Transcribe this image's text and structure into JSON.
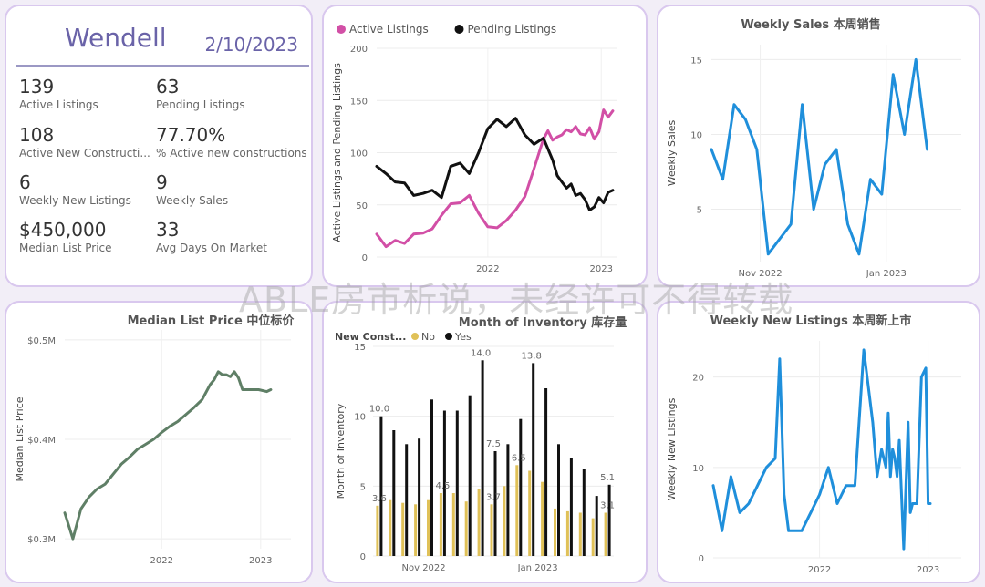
{
  "kpi": {
    "title": "Wendell",
    "date": "2/10/2023",
    "items": [
      {
        "value": "139",
        "label": "Active Listings"
      },
      {
        "value": "63",
        "label": "Pending Listings"
      },
      {
        "value": "108",
        "label": "Active New Constructi..."
      },
      {
        "value": "77.70%",
        "label": "% Active new constructions"
      },
      {
        "value": "6",
        "label": "Weekly New Listings"
      },
      {
        "value": "9",
        "label": "Weekly Sales"
      },
      {
        "value": "$450,000",
        "label": "Median List Price"
      },
      {
        "value": "33",
        "label": "Avg Days On Market"
      }
    ]
  },
  "watermark": "ABLE房市析说，未经许可不得转载",
  "colors": {
    "pink": "#d24fa6",
    "black": "#111111",
    "blue": "#1f8fdb",
    "green": "#5f7f66",
    "gold": "#e0c158"
  },
  "chart_data": [
    {
      "id": "active-pending",
      "type": "line",
      "title": "",
      "ylabel": "Active Listings and Pending Listings",
      "xlabel": "",
      "ylim": [
        0,
        200
      ],
      "yticks": [
        0,
        50,
        100,
        150,
        200
      ],
      "xlim": [
        0,
        52
      ],
      "xticks": [
        {
          "x": 24,
          "label": "2022"
        },
        {
          "x": 48.5,
          "label": "2023"
        }
      ],
      "legend": "top-left",
      "series": [
        {
          "name": "Active Listings",
          "color": "#d24fa6",
          "x": [
            0,
            2,
            4,
            6,
            8,
            10,
            12,
            14,
            16,
            18,
            20,
            22,
            24,
            26,
            28,
            30,
            32,
            34,
            36,
            37,
            38,
            39,
            40,
            41,
            42,
            43,
            44,
            45,
            46,
            47,
            48,
            49,
            50,
            51
          ],
          "y": [
            22,
            10,
            16,
            13,
            22,
            23,
            27,
            40,
            51,
            52,
            59,
            42,
            29,
            28,
            35,
            45,
            58,
            85,
            113,
            121,
            112,
            115,
            117,
            122,
            120,
            125,
            118,
            117,
            124,
            113,
            120,
            141,
            134,
            140
          ]
        },
        {
          "name": "Pending Listings",
          "color": "#111111",
          "x": [
            0,
            2,
            4,
            6,
            8,
            10,
            12,
            14,
            16,
            18,
            20,
            22,
            24,
            26,
            28,
            30,
            32,
            34,
            36,
            38,
            39,
            40,
            41,
            42,
            43,
            44,
            45,
            46,
            47,
            48,
            49,
            50,
            51
          ],
          "y": [
            87,
            80,
            72,
            71,
            59,
            61,
            64,
            57,
            87,
            90,
            80,
            100,
            123,
            132,
            125,
            133,
            117,
            108,
            114,
            93,
            78,
            72,
            66,
            70,
            59,
            61,
            55,
            45,
            48,
            57,
            52,
            62,
            64
          ]
        }
      ]
    },
    {
      "id": "weekly-sales",
      "type": "line",
      "title": "Weekly Sales 本周销售",
      "ylabel": "Weekly Sales",
      "xlabel": "",
      "ylim": [
        1.5,
        16
      ],
      "yticks": [
        5,
        10,
        15
      ],
      "xlim": [
        0,
        22
      ],
      "xticks": [
        {
          "x": 4.3,
          "label": "Nov 2022"
        },
        {
          "x": 15.4,
          "label": "Jan 2023"
        }
      ],
      "legend": "none",
      "series": [
        {
          "name": "Weekly Sales",
          "color": "#1f8fdb",
          "x": [
            0,
            1,
            2,
            3,
            4,
            5,
            6,
            7,
            8,
            9,
            10,
            11,
            12,
            13,
            14,
            15,
            16,
            17,
            18,
            19,
            20,
            21
          ],
          "y": [
            9,
            7,
            12,
            11,
            9,
            2,
            3,
            4,
            12,
            5,
            8,
            9,
            4,
            2,
            7,
            6,
            14,
            10,
            15,
            9,
            null,
            null
          ]
        }
      ]
    },
    {
      "id": "median-list-price",
      "type": "line",
      "title": "Median List Price  中位标价",
      "ylabel": "Median List Price",
      "xlabel": "",
      "ylim": [
        0.29,
        0.51
      ],
      "yticks": [
        {
          "v": 0.3,
          "label": "$0.3M"
        },
        {
          "v": 0.4,
          "label": "$0.4M"
        },
        {
          "v": 0.5,
          "label": "$0.5M"
        }
      ],
      "xlim": [
        0,
        56
      ],
      "xticks": [
        {
          "x": 24,
          "label": "2022"
        },
        {
          "x": 48.5,
          "label": "2023"
        }
      ],
      "legend": "none",
      "series": [
        {
          "name": "Median List Price",
          "color": "#5f7f66",
          "x": [
            0,
            2,
            4,
            6,
            8,
            10,
            12,
            14,
            16,
            18,
            20,
            22,
            24,
            26,
            28,
            30,
            32,
            34,
            36,
            37,
            38,
            39,
            40,
            41,
            42,
            43,
            44,
            46,
            48,
            50,
            51
          ],
          "y": [
            0.326,
            0.3,
            0.33,
            0.342,
            0.35,
            0.355,
            0.365,
            0.375,
            0.382,
            0.39,
            0.395,
            0.4,
            0.407,
            0.413,
            0.418,
            0.425,
            0.432,
            0.44,
            0.455,
            0.46,
            0.468,
            0.465,
            0.465,
            0.463,
            0.468,
            0.462,
            0.45,
            0.45,
            0.45,
            0.448,
            0.45
          ]
        }
      ]
    },
    {
      "id": "month-of-inventory",
      "type": "bar",
      "title": "Month of Inventory 库存量",
      "legend_title": "New Const...",
      "legend": "top-left",
      "ylabel": "Month of Inventory",
      "xlabel": "",
      "ylim": [
        0,
        15
      ],
      "yticks": [
        0,
        5,
        10,
        15
      ],
      "xticks": [
        {
          "i": 3.5,
          "label": "Nov 2022"
        },
        {
          "i": 12.5,
          "label": "Jan 2023"
        }
      ],
      "series": [
        {
          "name": "No",
          "color": "#e0c158",
          "values": [
            3.6,
            4.0,
            3.8,
            3.7,
            4.0,
            4.5,
            4.5,
            3.9,
            4.8,
            3.7,
            5.0,
            6.5,
            6.1,
            5.3,
            3.4,
            3.2,
            3.1,
            2.7,
            3.1
          ]
        },
        {
          "name": "Yes",
          "color": "#111111",
          "values": [
            10.0,
            9.0,
            8.0,
            8.4,
            11.2,
            10.4,
            10.4,
            11.5,
            14.0,
            7.5,
            8.0,
            9.8,
            13.8,
            12.0,
            8.0,
            7.0,
            6.2,
            4.3,
            5.1
          ]
        }
      ],
      "data_labels": [
        {
          "i": 0,
          "series": "Yes",
          "text": "10.0"
        },
        {
          "i": 0,
          "series": "No",
          "text": "3.6"
        },
        {
          "i": 5,
          "series": "No",
          "text": "4.5"
        },
        {
          "i": 8,
          "series": "Yes",
          "text": "14.0"
        },
        {
          "i": 9,
          "series": "No",
          "text": "3.7"
        },
        {
          "i": 9,
          "series": "Yes",
          "text": "7.5"
        },
        {
          "i": 11,
          "series": "No",
          "text": "6.5"
        },
        {
          "i": 12,
          "series": "Yes",
          "text": "13.8"
        },
        {
          "i": 18,
          "series": "Yes",
          "text": "5.1"
        },
        {
          "i": 18,
          "series": "No",
          "text": "3.1"
        }
      ]
    },
    {
      "id": "weekly-new-listings",
      "type": "line",
      "title": "Weekly New Listings  本周新上市",
      "ylabel": "Weekly New Listings",
      "xlabel": "",
      "ylim": [
        0,
        24
      ],
      "yticks": [
        0,
        10,
        20
      ],
      "xlim": [
        0,
        56
      ],
      "xticks": [
        {
          "x": 24,
          "label": "2022"
        },
        {
          "x": 48.5,
          "label": "2023"
        }
      ],
      "legend": "none",
      "series": [
        {
          "name": "Weekly New Listings",
          "color": "#1f8fdb",
          "x": [
            0,
            2,
            4,
            6,
            8,
            10,
            12,
            14,
            15,
            16,
            17,
            18,
            20,
            22,
            24,
            26,
            28,
            30,
            32,
            34,
            36,
            37,
            38,
            39,
            39.5,
            40,
            40.5,
            41,
            41.5,
            42,
            43,
            44,
            44.5,
            45,
            45.5,
            46,
            47,
            48,
            48.5,
            49
          ],
          "y": [
            8,
            3,
            9,
            5,
            6,
            8,
            10,
            11,
            22,
            7,
            3,
            3,
            3,
            5,
            7,
            10,
            6,
            8,
            8,
            23,
            15,
            9,
            12,
            10,
            16,
            9,
            12,
            11,
            9,
            13,
            1,
            15,
            5,
            6,
            6,
            6,
            20,
            21,
            6,
            6
          ]
        }
      ]
    }
  ]
}
